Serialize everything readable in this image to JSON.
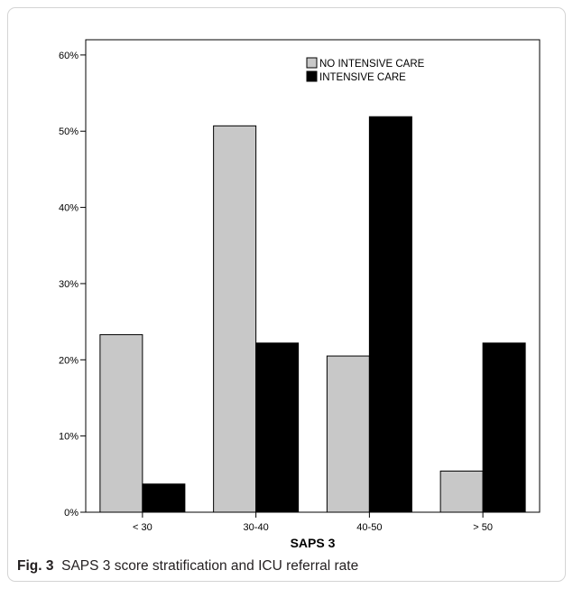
{
  "chart_data": {
    "type": "bar",
    "title": "",
    "xlabel": "SAPS 3",
    "ylabel": "",
    "categories": [
      "< 30",
      "30-40",
      "40-50",
      "> 50"
    ],
    "series": [
      {
        "name": "NO INTENSIVE CARE",
        "values": [
          23.3,
          50.7,
          20.5,
          5.4
        ],
        "color": "#c8c8c8"
      },
      {
        "name": "INTENSIVE CARE",
        "values": [
          3.7,
          22.2,
          51.9,
          22.2
        ],
        "color": "#000000"
      }
    ],
    "ylim": [
      0,
      62
    ],
    "yticks": [
      0,
      10,
      20,
      30,
      40,
      50,
      60
    ],
    "ytick_labels": [
      "0%",
      "10%",
      "20%",
      "30%",
      "40%",
      "50%",
      "60%"
    ],
    "grid": false,
    "legend_position": "top-right"
  },
  "caption": {
    "label": "Fig. 3",
    "text": "SAPS 3 score stratification and ICU referral rate"
  }
}
